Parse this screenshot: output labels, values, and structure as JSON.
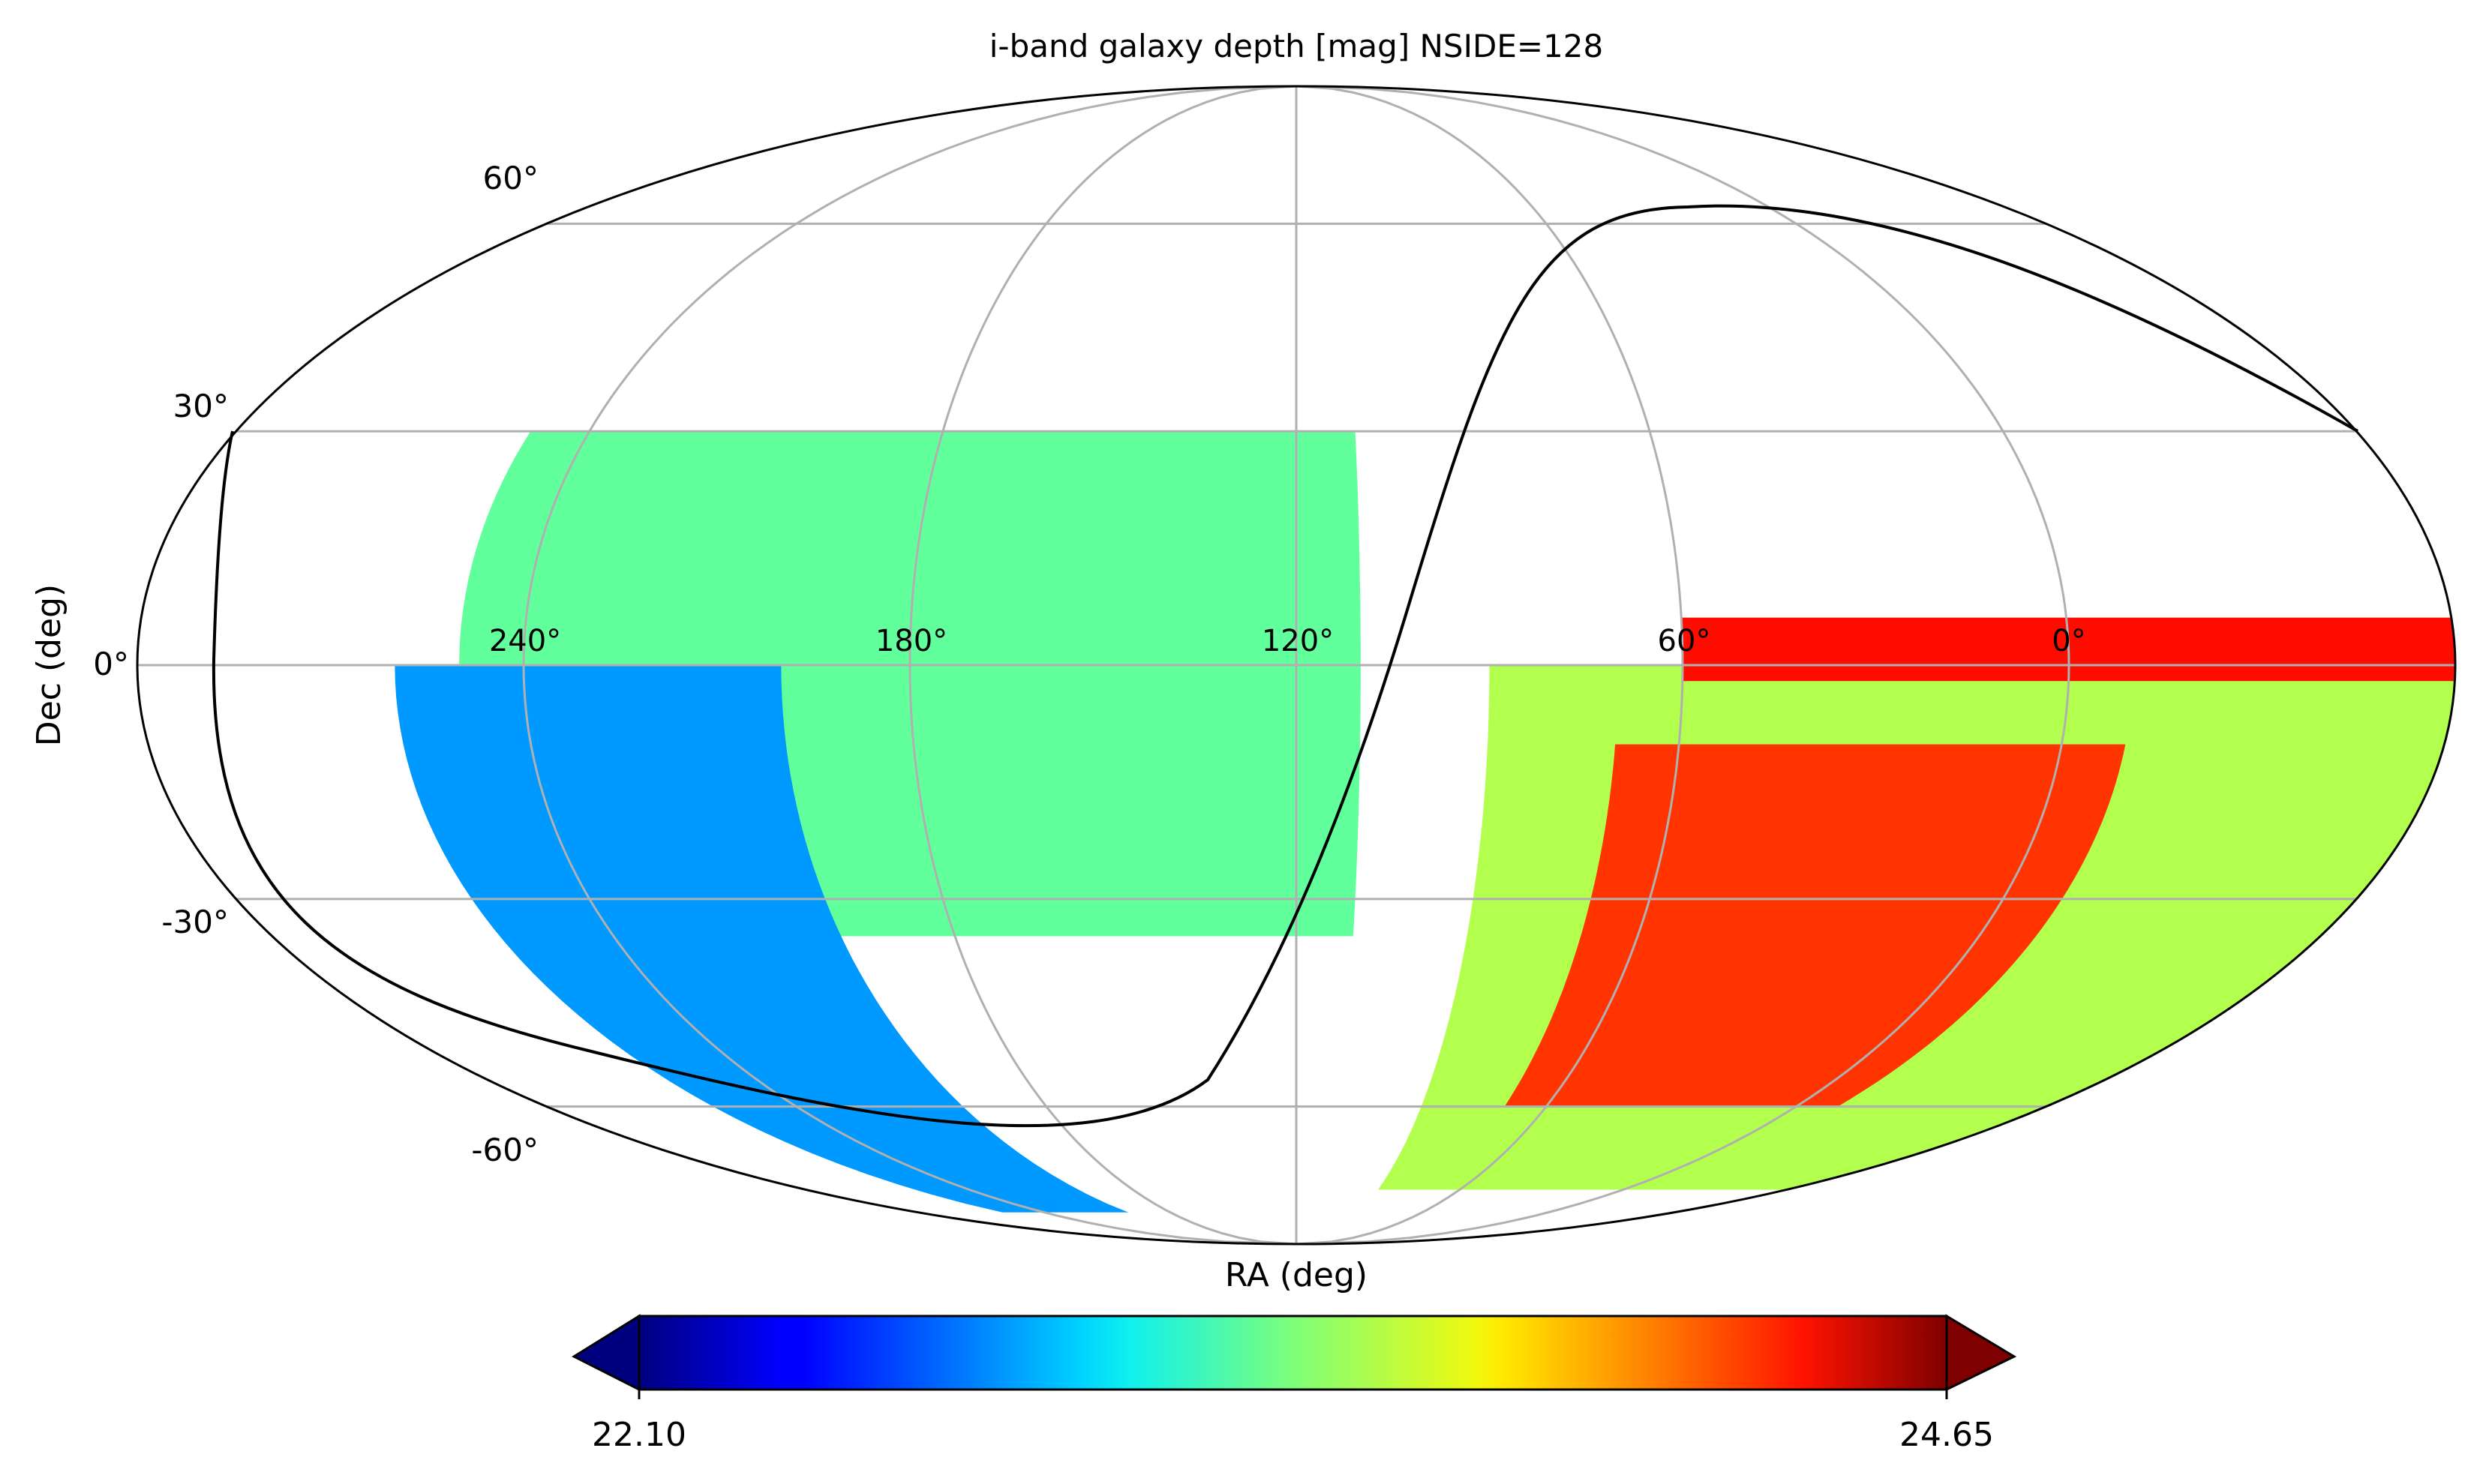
{
  "title": "i-band galaxy depth [mag] NSIDE=128",
  "xlabel": "RA (deg)",
  "ylabel": "Dec (deg)",
  "ra_ticks": [
    "240°",
    "180°",
    "120°",
    "60°",
    "0°"
  ],
  "dec_ticks": [
    "60°",
    "30°",
    "0°",
    "-30°",
    "-60°"
  ],
  "colorbar": {
    "min_label": "22.10",
    "max_label": "24.65",
    "colormap": "jet",
    "extend": "both"
  },
  "chart_data": {
    "type": "heatmap",
    "projection": "mollweide",
    "title": "i-band galaxy depth [mag] NSIDE=128",
    "xlabel": "RA (deg)",
    "ylabel": "Dec (deg)",
    "ra_tick_values": [
      240,
      180,
      120,
      60,
      0
    ],
    "dec_tick_values": [
      60,
      30,
      0,
      -30,
      -60
    ],
    "value_range": [
      22.1,
      24.65
    ],
    "grid": true,
    "regions": [
      {
        "ra": [
          110,
          250
        ],
        "dec": [
          -35,
          30
        ],
        "depth": 23.3
      },
      {
        "ra": [
          -60,
          90
        ],
        "dec": [
          -75,
          0
        ],
        "depth": 23.5
      },
      {
        "ra": [
          -10,
          70
        ],
        "dec": [
          -60,
          -10
        ],
        "depth": 24.2
      },
      {
        "ra": [
          -60,
          60
        ],
        "dec": [
          -2,
          6
        ],
        "depth": 24.3
      },
      {
        "ra": [
          200,
          260
        ],
        "dec": [
          -80,
          0
        ],
        "depth": 22.8
      }
    ]
  }
}
